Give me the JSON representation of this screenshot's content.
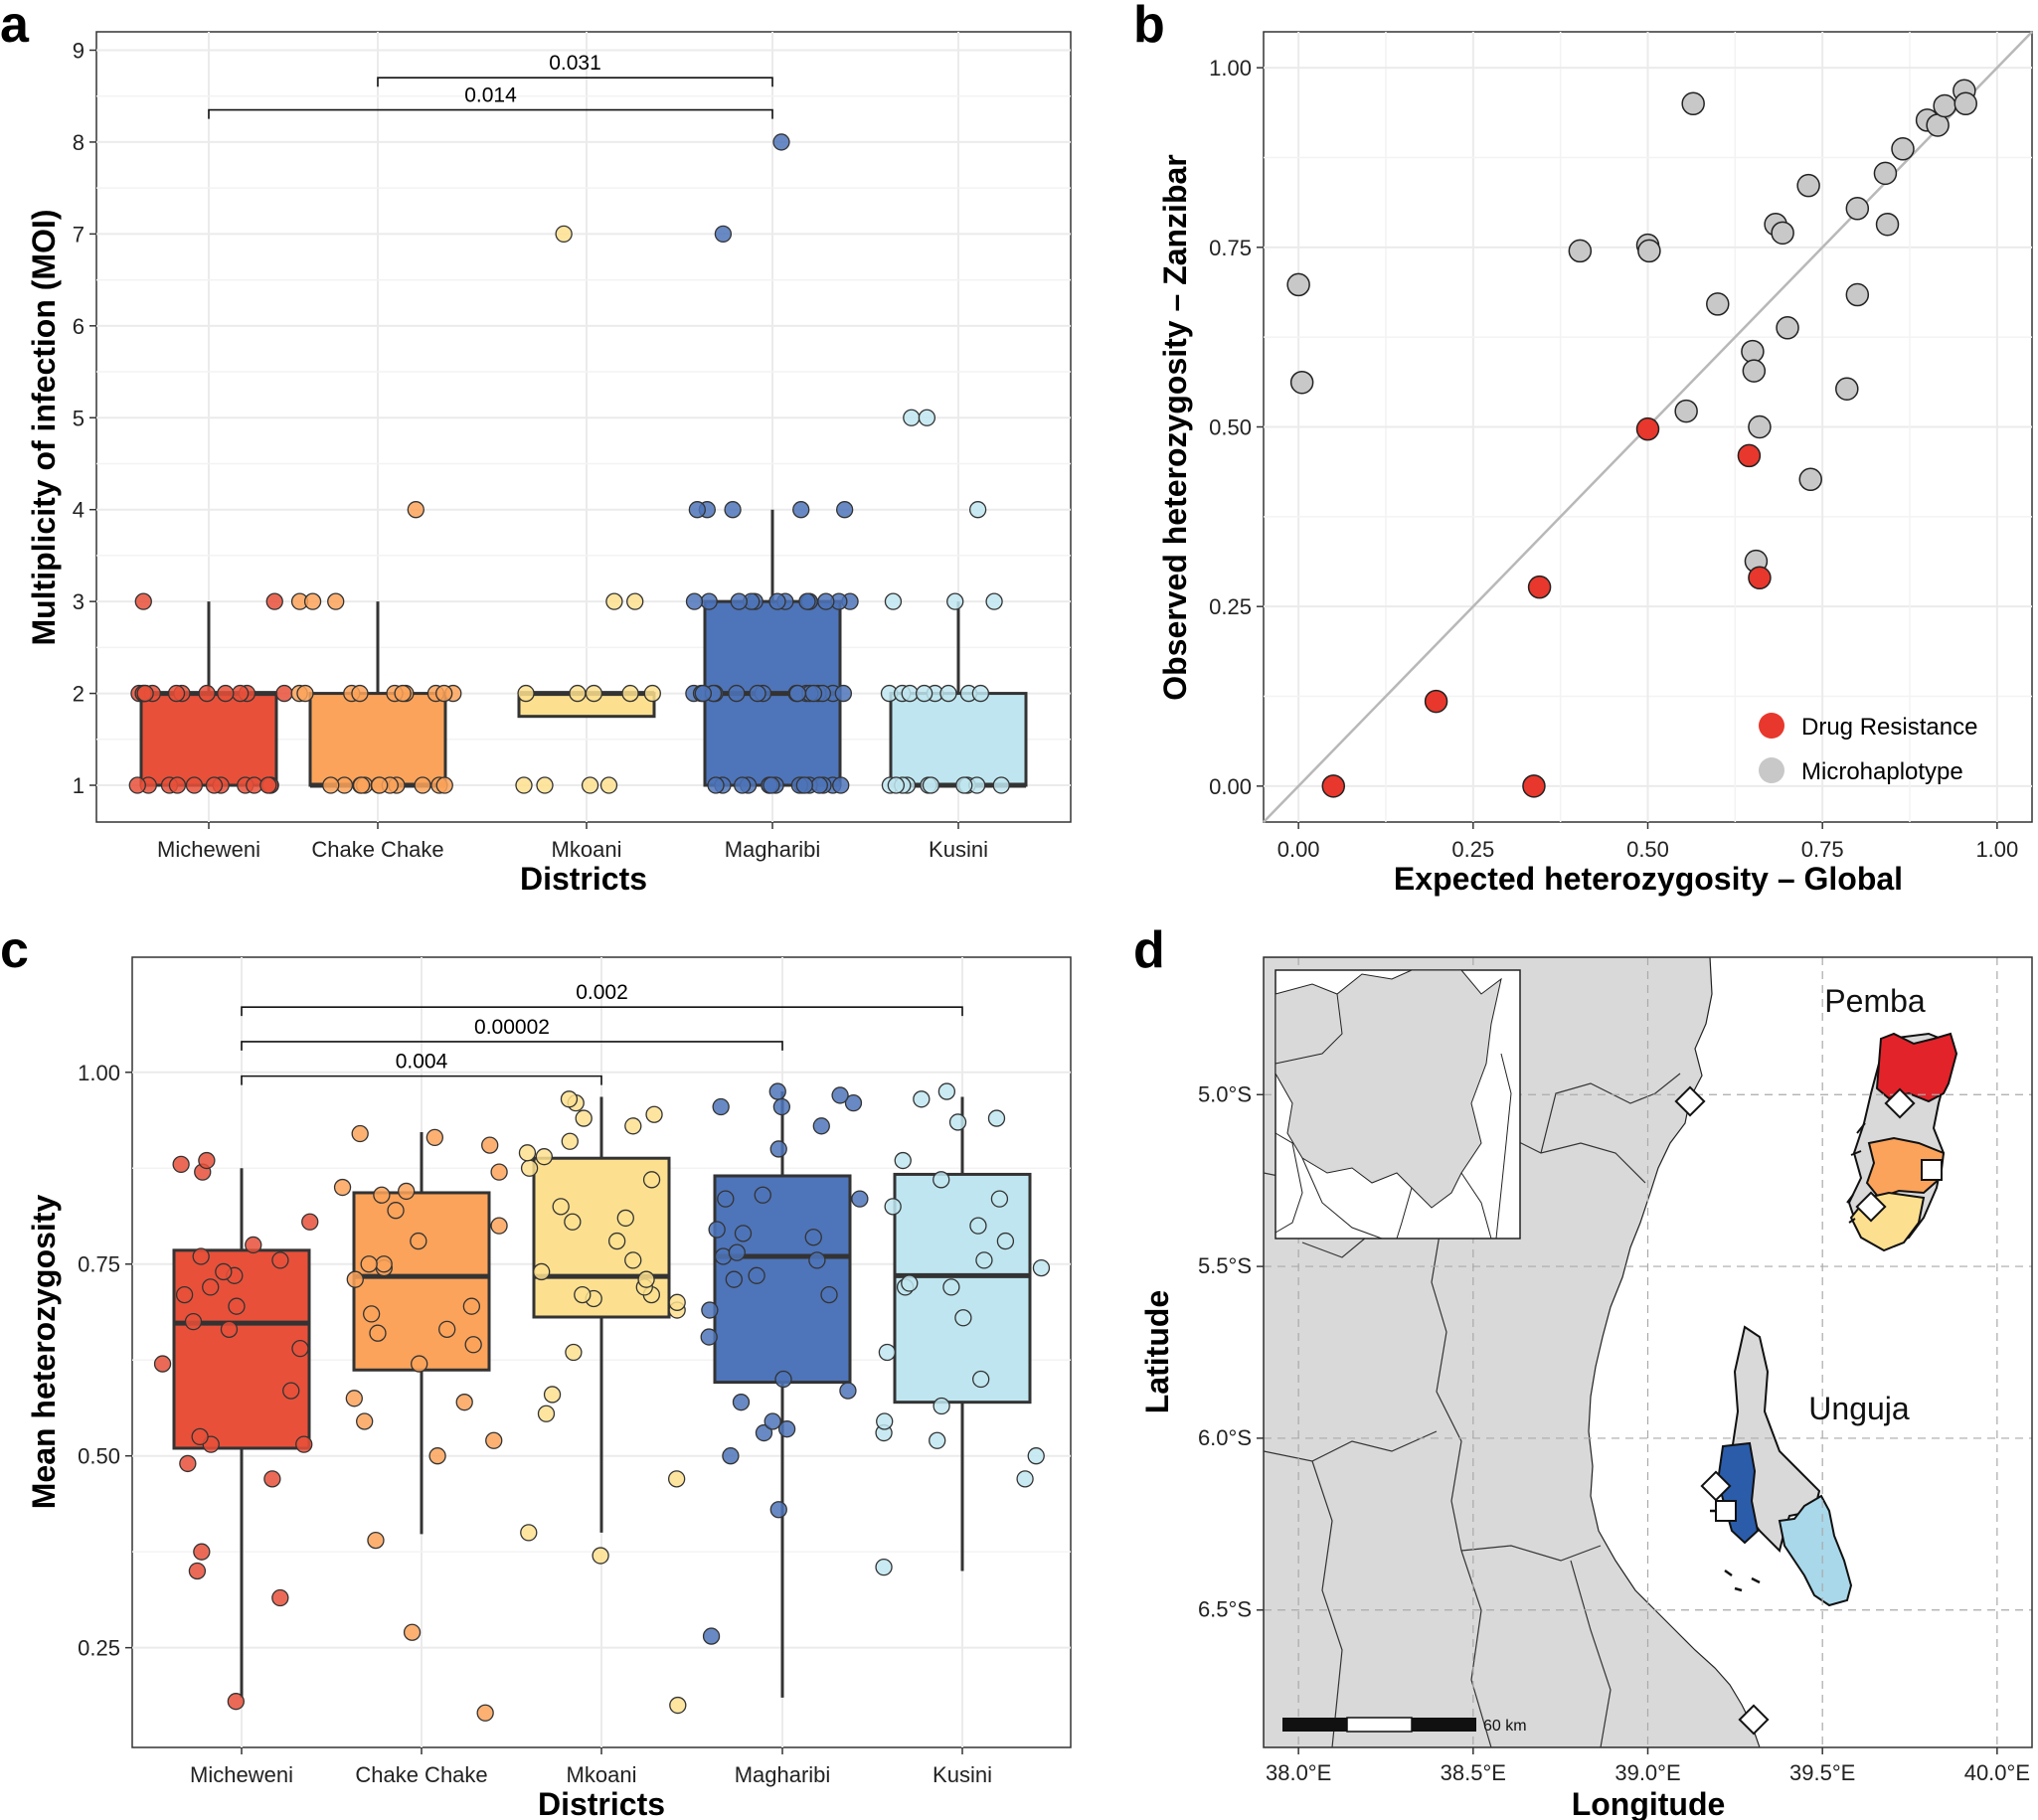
{
  "panels": {
    "a": "a",
    "b": "b",
    "c": "c",
    "d": "d"
  },
  "colors": {
    "Micheweni": "#e8503a",
    "Chake Chake": "#fba35a",
    "Mkoani": "#fde08f",
    "Magharibi": "#4e74b9",
    "Kusini": "#bfe6f0",
    "drug_resistance": "#e8372c",
    "microhaplotype": "#c8c8c8",
    "pemba_north": "#e2232a",
    "land": "#d9d9d9"
  },
  "chart_data": [
    {
      "id": "a",
      "type": "box",
      "xlabel": "Districts",
      "ylabel": "Multiplicity of infection (MOI)",
      "categories": [
        "Micheweni",
        "Chake Chake",
        "Mkoani",
        "Magharibi",
        "Kusini"
      ],
      "ylim": [
        0.6,
        9.2
      ],
      "yticks": [
        "1",
        "2",
        "3",
        "4",
        "5",
        "6",
        "7",
        "8",
        "9"
      ],
      "boxes": [
        {
          "q1": 1,
          "median": 2,
          "q3": 2,
          "wlow": 1,
          "whigh": 3
        },
        {
          "q1": 1,
          "median": 1,
          "q3": 2,
          "wlow": 1,
          "whigh": 3
        },
        {
          "q1": 1.75,
          "median": 2,
          "q3": 2,
          "wlow": 1.75,
          "whigh": 2
        },
        {
          "q1": 1,
          "median": 2,
          "q3": 3,
          "wlow": 1,
          "whigh": 4
        },
        {
          "q1": 1,
          "median": 1,
          "q3": 2,
          "wlow": 1,
          "whigh": 3
        }
      ],
      "points": [
        [
          1,
          1,
          1,
          1,
          1,
          1,
          1,
          1,
          1,
          1,
          1,
          1,
          2,
          2,
          2,
          2,
          2,
          2,
          2,
          2,
          2,
          2,
          2,
          2,
          2,
          3,
          3
        ],
        [
          1,
          1,
          1,
          1,
          1,
          1,
          1,
          1,
          1,
          1,
          1,
          1,
          2,
          2,
          2,
          2,
          2,
          2,
          2,
          2,
          2,
          2,
          3,
          3,
          3,
          4
        ],
        [
          1,
          1,
          1,
          1,
          2,
          2,
          2,
          2,
          2,
          3,
          3,
          7
        ],
        [
          1,
          1,
          1,
          1,
          1,
          1,
          1,
          1,
          1,
          1,
          1,
          1,
          1,
          1,
          1,
          1,
          2,
          2,
          2,
          2,
          2,
          2,
          2,
          2,
          2,
          2,
          2,
          2,
          2,
          2,
          2,
          2,
          2,
          3,
          3,
          3,
          3,
          3,
          3,
          3,
          3,
          3,
          3,
          3,
          3,
          3,
          4,
          4,
          4,
          4,
          4,
          7,
          8
        ],
        [
          1,
          1,
          1,
          1,
          1,
          1,
          1,
          1,
          1,
          1,
          1,
          2,
          2,
          2,
          2,
          2,
          2,
          2,
          2,
          3,
          3,
          3,
          4,
          5,
          5
        ]
      ],
      "brackets": [
        {
          "from": 2,
          "to": 4,
          "y": 8.7,
          "label": "0.031"
        },
        {
          "from": 1,
          "to": 4,
          "y": 8.35,
          "label": "0.014"
        }
      ]
    },
    {
      "id": "b",
      "type": "scatter",
      "xlabel": "Expected heterozygosity – Global",
      "ylabel": "Observed heterozygosity – Zanzibar",
      "xlim": [
        -0.05,
        1.05
      ],
      "ylim": [
        -0.05,
        1.05
      ],
      "xticks": [
        "0.00",
        "0.25",
        "0.50",
        "0.75",
        "1.00"
      ],
      "yticks": [
        "0.00",
        "0.25",
        "0.50",
        "0.75",
        "1.00"
      ],
      "legend": [
        "Drug Resistance",
        "Microhaplotype"
      ],
      "series": [
        {
          "name": "Drug Resistance",
          "x": [
            0.05,
            0.197,
            0.337,
            0.345,
            0.5,
            0.645,
            0.66
          ],
          "y": [
            0.0,
            0.118,
            0.0,
            0.277,
            0.497,
            0.46,
            0.29
          ]
        },
        {
          "name": "Microhaplotype",
          "x": [
            0.0,
            0.005,
            0.403,
            0.5,
            0.502,
            0.555,
            0.565,
            0.6,
            0.65,
            0.652,
            0.655,
            0.66,
            0.683,
            0.693,
            0.7,
            0.73,
            0.733,
            0.785,
            0.8,
            0.8,
            0.84,
            0.843,
            0.865,
            0.9,
            0.915,
            0.925,
            0.953,
            0.955
          ],
          "y": [
            0.698,
            0.562,
            0.745,
            0.753,
            0.745,
            0.522,
            0.95,
            0.671,
            0.605,
            0.578,
            0.313,
            0.5,
            0.782,
            0.77,
            0.638,
            0.836,
            0.427,
            0.553,
            0.804,
            0.684,
            0.853,
            0.782,
            0.887,
            0.927,
            0.92,
            0.947,
            0.968,
            0.95
          ]
        }
      ]
    },
    {
      "id": "c",
      "type": "box",
      "xlabel": "Districts",
      "ylabel": "Mean heterozygosity",
      "categories": [
        "Micheweni",
        "Chake Chake",
        "Mkoani",
        "Magharibi",
        "Kusini"
      ],
      "ylim": [
        0.12,
        1.15
      ],
      "yticks": [
        "0.25",
        "0.50",
        "0.75",
        "1.00"
      ],
      "boxes": [
        {
          "q1": 0.51,
          "median": 0.673,
          "q3": 0.768,
          "wlow": 0.185,
          "whigh": 0.875
        },
        {
          "q1": 0.612,
          "median": 0.734,
          "q3": 0.843,
          "wlow": 0.398,
          "whigh": 0.922
        },
        {
          "q1": 0.681,
          "median": 0.734,
          "q3": 0.888,
          "wlow": 0.4,
          "whigh": 0.968
        },
        {
          "q1": 0.596,
          "median": 0.76,
          "q3": 0.865,
          "wlow": 0.185,
          "whigh": 0.975
        },
        {
          "q1": 0.57,
          "median": 0.735,
          "q3": 0.867,
          "wlow": 0.35,
          "whigh": 0.968
        }
      ],
      "points": [
        [
          0.18,
          0.315,
          0.35,
          0.375,
          0.47,
          0.49,
          0.515,
          0.515,
          0.525,
          0.585,
          0.62,
          0.64,
          0.665,
          0.675,
          0.695,
          0.71,
          0.72,
          0.735,
          0.74,
          0.755,
          0.76,
          0.775,
          0.805,
          0.87,
          0.88,
          0.885
        ],
        [
          0.165,
          0.27,
          0.39,
          0.5,
          0.52,
          0.545,
          0.57,
          0.575,
          0.62,
          0.645,
          0.66,
          0.665,
          0.685,
          0.695,
          0.73,
          0.745,
          0.75,
          0.75,
          0.78,
          0.8,
          0.82,
          0.84,
          0.845,
          0.85,
          0.87,
          0.905,
          0.915,
          0.92
        ],
        [
          0.175,
          0.37,
          0.4,
          0.47,
          0.555,
          0.58,
          0.635,
          0.69,
          0.7,
          0.705,
          0.71,
          0.71,
          0.72,
          0.73,
          0.74,
          0.755,
          0.78,
          0.805,
          0.81,
          0.825,
          0.86,
          0.875,
          0.89,
          0.895,
          0.91,
          0.93,
          0.94,
          0.945,
          0.96,
          0.965
        ],
        [
          0.265,
          0.43,
          0.5,
          0.53,
          0.535,
          0.545,
          0.57,
          0.585,
          0.6,
          0.655,
          0.69,
          0.71,
          0.73,
          0.735,
          0.755,
          0.76,
          0.765,
          0.785,
          0.79,
          0.795,
          0.835,
          0.835,
          0.84,
          0.9,
          0.93,
          0.955,
          0.955,
          0.96,
          0.97,
          0.975
        ],
        [
          0.355,
          0.47,
          0.5,
          0.52,
          0.53,
          0.545,
          0.565,
          0.6,
          0.635,
          0.68,
          0.72,
          0.72,
          0.725,
          0.745,
          0.755,
          0.78,
          0.8,
          0.825,
          0.835,
          0.86,
          0.885,
          0.935,
          0.94,
          0.965,
          0.975
        ]
      ],
      "brackets": [
        {
          "from": 1,
          "to": 5,
          "y": 1.085,
          "label": "0.002"
        },
        {
          "from": 1,
          "to": 4,
          "y": 1.04,
          "label": "0.00002"
        },
        {
          "from": 1,
          "to": 3,
          "y": 0.995,
          "label": "0.004"
        }
      ]
    },
    {
      "id": "d",
      "type": "map",
      "xlabel": "Longitude",
      "ylabel": "Latitude",
      "xlim": [
        37.9,
        40.1
      ],
      "ylim": [
        -6.9,
        -4.6
      ],
      "xticks": [
        "38.0°E",
        "38.5°E",
        "39.0°E",
        "39.5°E",
        "40.0°E"
      ],
      "yticks": [
        "5.0°S",
        "5.5°S",
        "6.0°S",
        "6.5°S"
      ],
      "labels": {
        "pemba": "Pemba",
        "unguja": "Unguja"
      },
      "scalebar": "60 km"
    }
  ]
}
